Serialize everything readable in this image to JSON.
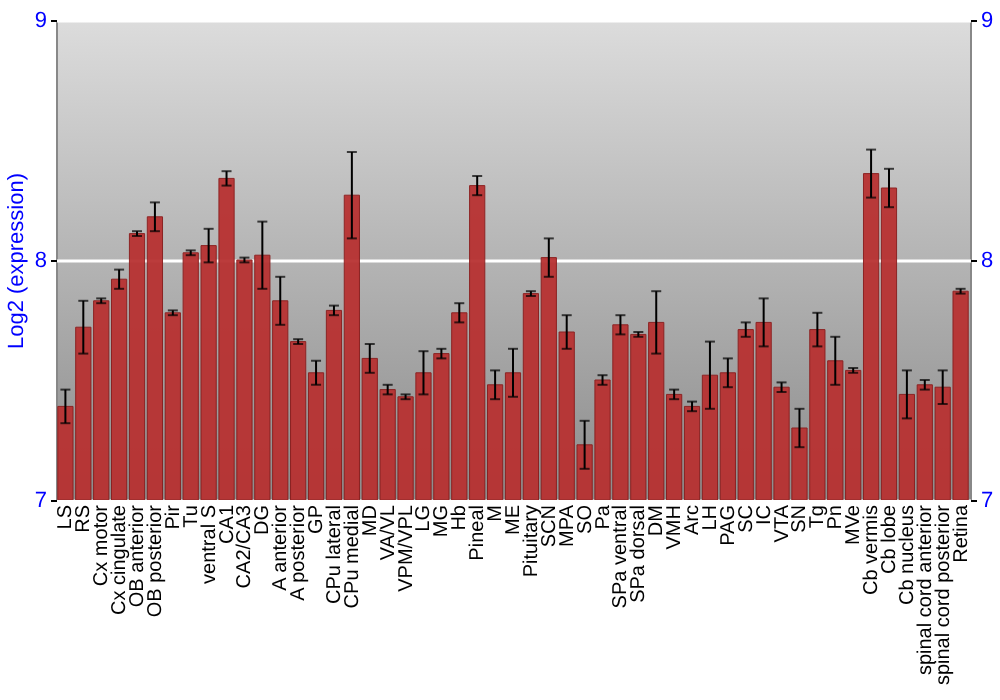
{
  "chart_data": {
    "type": "bar",
    "ylabel": "Log2 (expression)",
    "categories": [
      "LS",
      "RS",
      "Cx motor",
      "Cx cingulate",
      "OB anterior",
      "OB posterior",
      "Pir",
      "Tu",
      "ventral S",
      "CA1",
      "CA2/CA3",
      "DG",
      "A anterior",
      "A posterior",
      "GP",
      "CPu lateral",
      "CPu medial",
      "MD",
      "VA/VL",
      "VPM/VPL",
      "LG",
      "MG",
      "Hb",
      "Pineal",
      "M",
      "ME",
      "Pituitary",
      "SCN",
      "MPA",
      "SO",
      "Pa",
      "SPa ventral",
      "SPa dorsal",
      "DM",
      "VMH",
      "Arc",
      "LH",
      "PAG",
      "SC",
      "IC",
      "VTA",
      "SN",
      "Tg",
      "Pn",
      "MVe",
      "Cb vermis",
      "Cb lobe",
      "Cb nucleus",
      "spinal cord anterior",
      "spinal cord posterior",
      "Retina"
    ],
    "values": [
      7.39,
      7.72,
      7.83,
      7.92,
      8.11,
      8.18,
      7.78,
      8.03,
      8.06,
      8.34,
      8.0,
      8.02,
      7.83,
      7.66,
      7.53,
      7.79,
      8.27,
      7.59,
      7.46,
      7.43,
      7.53,
      7.61,
      7.78,
      8.31,
      7.48,
      7.53,
      7.86,
      8.01,
      7.7,
      7.23,
      7.5,
      7.73,
      7.69,
      7.74,
      7.44,
      7.39,
      7.52,
      7.53,
      7.71,
      7.74,
      7.47,
      7.3,
      7.71,
      7.58,
      7.54,
      8.36,
      8.3,
      7.44,
      7.48,
      7.47,
      7.87
    ],
    "errors": [
      0.07,
      0.11,
      0.01,
      0.04,
      0.01,
      0.06,
      0.01,
      0.01,
      0.07,
      0.03,
      0.01,
      0.14,
      0.1,
      0.01,
      0.05,
      0.02,
      0.18,
      0.06,
      0.02,
      0.01,
      0.09,
      0.02,
      0.04,
      0.04,
      0.06,
      0.1,
      0.01,
      0.08,
      0.07,
      0.1,
      0.02,
      0.04,
      0.01,
      0.13,
      0.02,
      0.02,
      0.14,
      0.06,
      0.03,
      0.1,
      0.02,
      0.08,
      0.07,
      0.1,
      0.01,
      0.1,
      0.08,
      0.1,
      0.02,
      0.07,
      0.01
    ],
    "color": "#b83232",
    "ylim": [
      7,
      9
    ],
    "yticks": [
      7,
      8,
      9
    ],
    "y2lim": [
      7,
      9
    ],
    "y2ticks": [
      7,
      8,
      9
    ],
    "grid": "y"
  }
}
